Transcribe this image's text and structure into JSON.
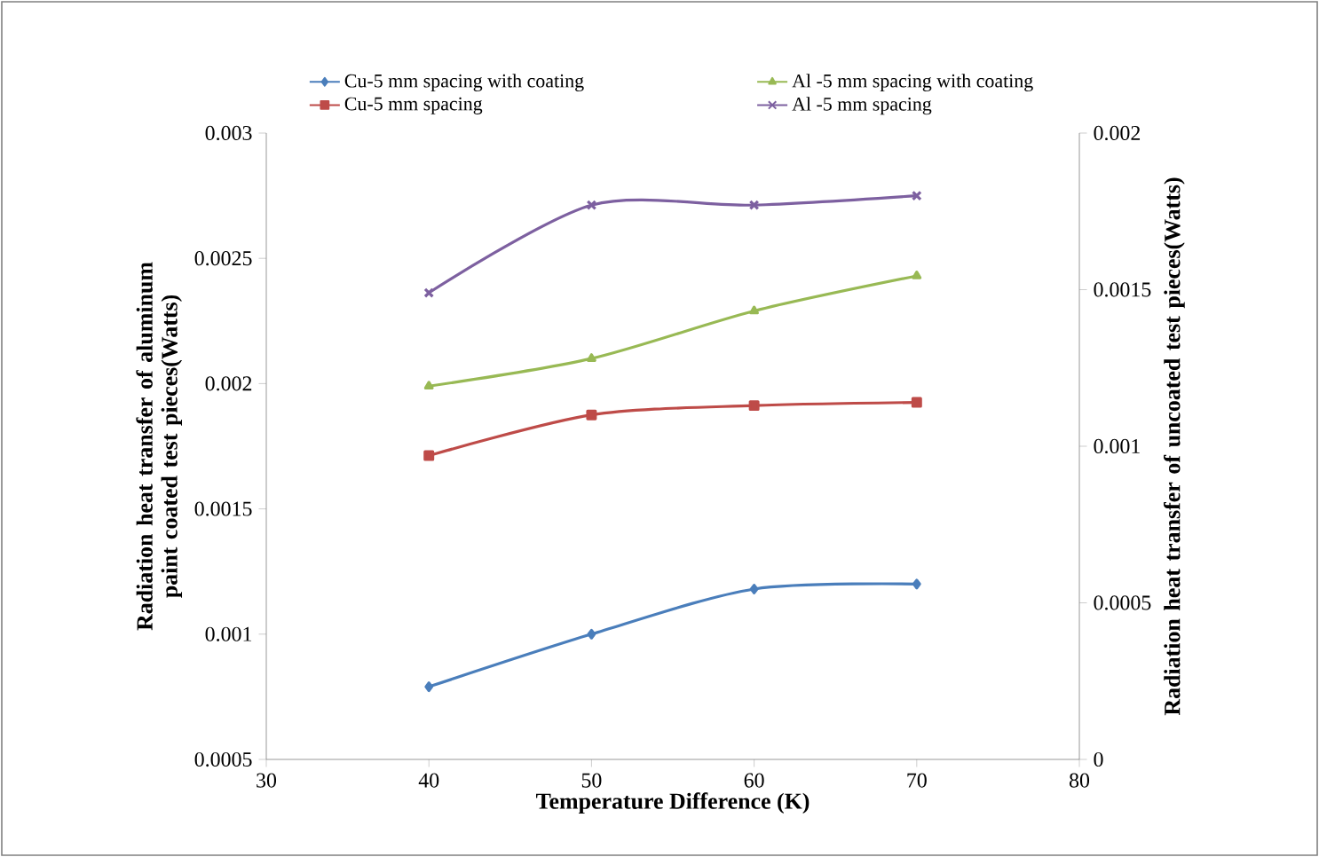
{
  "chart_data": {
    "type": "line",
    "xlabel": "Temperature Difference (K)",
    "ylabel": "Radiation heat transfer of aluminum paint coated test pieces(Watts)",
    "y2label": "Radiation heat transfer of uncoated test pieces(Watts)",
    "x": [
      40,
      50,
      60,
      70
    ],
    "series": [
      {
        "name": "Cu-5 mm spacing  with coating",
        "color": "#4a7ebb",
        "marker": "diamond",
        "values": [
          0.00079,
          0.001,
          0.00118,
          0.0012
        ]
      },
      {
        "name": "Cu-5 mm spacing",
        "color": "#be4b48",
        "marker": "square",
        "axis": "y2",
        "values": [
          0.00097,
          0.0011,
          0.00113,
          0.00114
        ]
      },
      {
        "name": "Al -5 mm spacing with coating",
        "color": "#98b954",
        "marker": "triangle",
        "values": [
          0.00199,
          0.0021,
          0.00229,
          0.00243
        ]
      },
      {
        "name": "Al -5 mm spacing",
        "color": "#7d60a0",
        "marker": "cross",
        "axis": "y2",
        "values": [
          0.00149,
          0.00177,
          0.00177,
          0.0018
        ]
      }
    ],
    "xlim": [
      30,
      80
    ],
    "xticks": [
      30,
      40,
      50,
      60,
      70,
      80
    ],
    "ylim": [
      0.0005,
      0.003
    ],
    "yticks": [
      0.0005,
      0.001,
      0.0015,
      0.002,
      0.0025,
      0.003
    ],
    "y2lim": [
      0,
      0.002
    ],
    "y2ticks": [
      0,
      0.0005,
      0.001,
      0.0015,
      0.002
    ],
    "legend": "top",
    "grid": false
  }
}
